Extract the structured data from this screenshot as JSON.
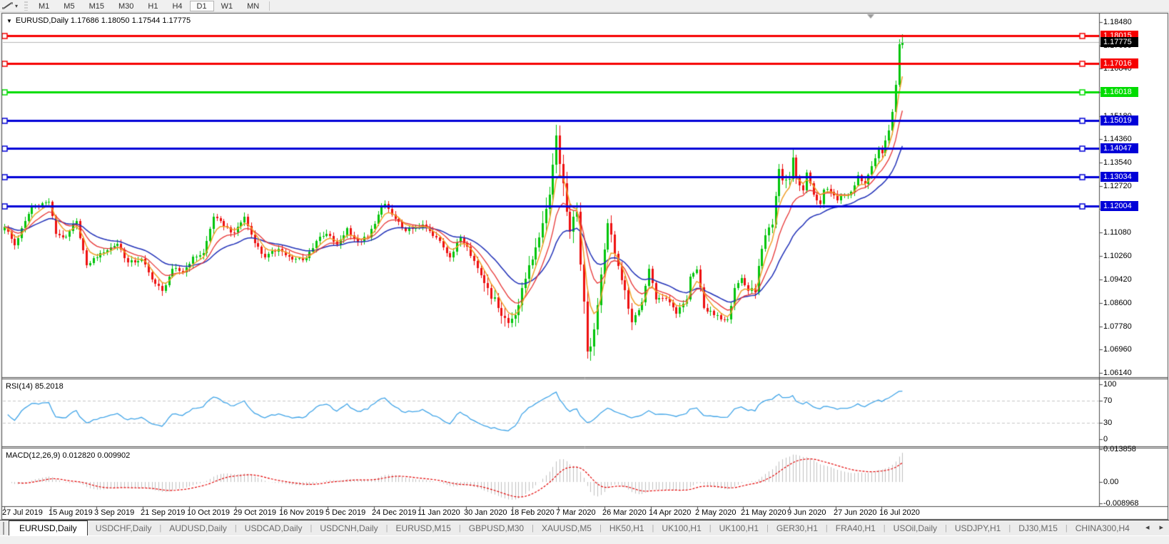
{
  "toolbar": {
    "timeframes": [
      "M1",
      "M5",
      "M15",
      "M30",
      "H1",
      "H4",
      "D1",
      "W1",
      "MN"
    ],
    "selected_timeframe": "D1"
  },
  "chart": {
    "title_line": "EURUSD,Daily  1.17686 1.18050 1.17544 1.17775",
    "symbol": "EURUSD,Daily",
    "open": "1.17686",
    "high": "1.18050",
    "low": "1.17544",
    "close": "1.17775"
  },
  "indicators": {
    "rsi_label": "RSI(14) 85.2018",
    "macd_label": "MACD(12,26,9) 0.012820 0.009902"
  },
  "chart_data": {
    "type": "candlestick",
    "symbol": "EURUSD",
    "timeframe": "Daily",
    "last_candle": {
      "open": 1.17686,
      "high": 1.1805,
      "low": 1.17544,
      "close": 1.17775
    },
    "current_price": 1.17775,
    "current_price_label": "1.17775",
    "y_axis_ticks": [
      "1.18480",
      "1.17660",
      "1.16840",
      "1.16020",
      "1.15180",
      "1.14360",
      "1.13540",
      "1.12720",
      "1.11900",
      "1.11080",
      "1.10260",
      "1.09420",
      "1.08600",
      "1.07780",
      "1.06960",
      "1.06140"
    ],
    "x_axis_ticks": [
      "27 Jul 2019",
      "15 Aug 2019",
      "3 Sep 2019",
      "21 Sep 2019",
      "10 Oct 2019",
      "29 Oct 2019",
      "16 Nov 2019",
      "5 Dec 2019",
      "24 Dec 2019",
      "11 Jan 2020",
      "30 Jan 2020",
      "18 Feb 2020",
      "7 Mar 2020",
      "26 Mar 2020",
      "14 Apr 2020",
      "2 May 2020",
      "21 May 2020",
      "9 Jun 2020",
      "27 Jun 2020",
      "16 Jul 2020"
    ],
    "horizontal_lines": [
      {
        "price": 1.18015,
        "label": "1.18015",
        "color": "#f60000",
        "type": "resistance"
      },
      {
        "price": 1.17016,
        "label": "1.17016",
        "color": "#f60000",
        "type": "resistance"
      },
      {
        "price": 1.16018,
        "label": "1.16018",
        "color": "#00dc00",
        "type": "level"
      },
      {
        "price": 1.15019,
        "label": "1.15019",
        "color": "#0000d8",
        "type": "support"
      },
      {
        "price": 1.14047,
        "label": "1.14047",
        "color": "#0000d8",
        "type": "support"
      },
      {
        "price": 1.13034,
        "label": "1.13034",
        "color": "#0000d8",
        "type": "support"
      },
      {
        "price": 1.12004,
        "label": "1.12004",
        "color": "#0000d8",
        "type": "support"
      }
    ],
    "num_candles": 263,
    "price_anchors": [
      [
        0,
        1.1128
      ],
      [
        3,
        1.1062
      ],
      [
        8,
        1.12
      ],
      [
        13,
        1.1215
      ],
      [
        15,
        1.1102
      ],
      [
        18,
        1.1092
      ],
      [
        21,
        1.1148
      ],
      [
        24,
        1.0992
      ],
      [
        28,
        1.1035
      ],
      [
        33,
        1.1068
      ],
      [
        36,
        1.1002
      ],
      [
        40,
        1.1015
      ],
      [
        43,
        1.0942
      ],
      [
        46,
        1.0902
      ],
      [
        49,
        1.098
      ],
      [
        52,
        1.0968
      ],
      [
        55,
        1.1022
      ],
      [
        58,
        1.1035
      ],
      [
        61,
        1.1163
      ],
      [
        64,
        1.113
      ],
      [
        67,
        1.1108
      ],
      [
        70,
        1.1164
      ],
      [
        73,
        1.107
      ],
      [
        76,
        1.102
      ],
      [
        80,
        1.105
      ],
      [
        84,
        1.1012
      ],
      [
        88,
        1.1018
      ],
      [
        91,
        1.1078
      ],
      [
        94,
        1.1102
      ],
      [
        97,
        1.1065
      ],
      [
        100,
        1.1122
      ],
      [
        103,
        1.1076
      ],
      [
        106,
        1.109
      ],
      [
        109,
        1.1172
      ],
      [
        111,
        1.1208
      ],
      [
        113,
        1.117
      ],
      [
        116,
        1.1122
      ],
      [
        119,
        1.112
      ],
      [
        122,
        1.1136
      ],
      [
        125,
        1.1095
      ],
      [
        127,
        1.1078
      ],
      [
        130,
        1.102
      ],
      [
        133,
        1.109
      ],
      [
        135,
        1.1058
      ],
      [
        138,
        1.0982
      ],
      [
        141,
        1.0912
      ],
      [
        144,
        1.0842
      ],
      [
        147,
        1.079
      ],
      [
        150,
        1.0852
      ],
      [
        153,
        1.0992
      ],
      [
        155,
        1.1055
      ],
      [
        157,
        1.114
      ],
      [
        159,
        1.124
      ],
      [
        161,
        1.145
      ],
      [
        163,
        1.128
      ],
      [
        165,
        1.111
      ],
      [
        167,
        1.118
      ],
      [
        168,
        1.0995
      ],
      [
        170,
        1.069
      ],
      [
        171,
        1.0706
      ],
      [
        173,
        1.0852
      ],
      [
        175,
        1.1048
      ],
      [
        176,
        1.114
      ],
      [
        178,
        1.1032
      ],
      [
        181,
        1.0906
      ],
      [
        183,
        1.0792
      ],
      [
        186,
        1.0862
      ],
      [
        188,
        1.098
      ],
      [
        190,
        1.0872
      ],
      [
        193,
        1.0876
      ],
      [
        196,
        1.0822
      ],
      [
        199,
        1.0872
      ],
      [
        200,
        1.0952
      ],
      [
        202,
        1.0978
      ],
      [
        204,
        1.0842
      ],
      [
        207,
        1.0816
      ],
      [
        211,
        1.0802
      ],
      [
        213,
        1.0912
      ],
      [
        215,
        1.0948
      ],
      [
        217,
        1.0902
      ],
      [
        219,
        1.0898
      ],
      [
        220,
        1.099
      ],
      [
        222,
        1.1098
      ],
      [
        224,
        1.1135
      ],
      [
        226,
        1.1332
      ],
      [
        227,
        1.129
      ],
      [
        229,
        1.1296
      ],
      [
        230,
        1.1372
      ],
      [
        231,
        1.1298
      ],
      [
        233,
        1.1256
      ],
      [
        234,
        1.1318
      ],
      [
        236,
        1.1242
      ],
      [
        238,
        1.1208
      ],
      [
        239,
        1.1258
      ],
      [
        241,
        1.125
      ],
      [
        243,
        1.122
      ],
      [
        245,
        1.1238
      ],
      [
        247,
        1.125
      ],
      [
        249,
        1.1308
      ],
      [
        251,
        1.1278
      ],
      [
        253,
        1.1342
      ],
      [
        255,
        1.14
      ],
      [
        256,
        1.1386
      ],
      [
        257,
        1.1432
      ],
      [
        258,
        1.1466
      ],
      [
        259,
        1.1532
      ],
      [
        260,
        1.1628
      ],
      [
        261,
        1.1769
      ],
      [
        262,
        1.17775
      ]
    ],
    "moving_averages": [
      {
        "name": "fast",
        "period": 5,
        "color": "#f0a028"
      },
      {
        "name": "medium",
        "period": 11,
        "color": "#e83535"
      },
      {
        "name": "slow",
        "period": 24,
        "color": "#2030b8"
      }
    ],
    "rsi": {
      "period": 14,
      "value": 85.2018,
      "levels": [
        30,
        70
      ],
      "scale_ticks": [
        "100",
        "70",
        "30",
        "0"
      ],
      "color": "#3fa4e8"
    },
    "macd": {
      "fast": 12,
      "slow": 26,
      "signal": 9,
      "macd_value": 0.01282,
      "signal_value": 0.009902,
      "scale_ticks": [
        "0.013858",
        "0.00",
        "-0.008968"
      ],
      "hist_color": "#c0c0c0",
      "signal_color": "#e40000"
    },
    "colors": {
      "up": "#00c40a",
      "down": "#ee0f0f",
      "background": "#ffffff",
      "current_price_line": "#b6b6b6"
    }
  },
  "tabs": {
    "items": [
      "EURUSD,Daily",
      "USDCHF,Daily",
      "AUDUSD,Daily",
      "USDCAD,Daily",
      "USDCNH,Daily",
      "EURUSD,M15",
      "GBPUSD,M30",
      "XAUUSD,M5",
      "HK50,H1",
      "UK100,H1",
      "UK100,H1",
      "GER30,H1",
      "FRA40,H1",
      "USOil,Daily",
      "USDJPY,H1",
      "DJ30,M15",
      "CHINA300,H4"
    ],
    "active": "EURUSD,Daily"
  }
}
